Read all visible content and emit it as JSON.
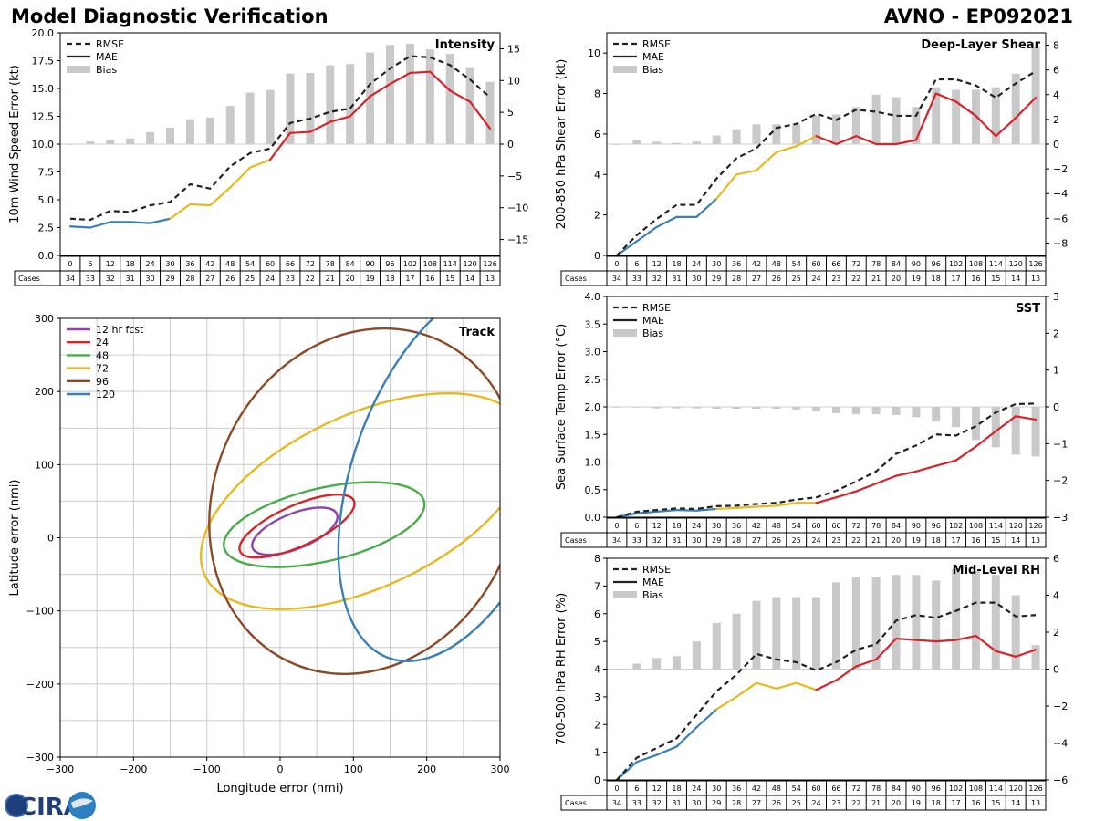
{
  "header": {
    "title_left": "Model Diagnostic Verification",
    "title_right": "AVNO - EP092021"
  },
  "logo": {
    "text": "CIRA",
    "colors": {
      "ring": "#3b6fb3",
      "globe": "#2c7fc1",
      "accent": "#e0e6ee"
    }
  },
  "colors": {
    "rmse": "#222222",
    "mae_early": "#3a7fb8",
    "mae_mid": "#e8b820",
    "mae_late": "#d9232a",
    "bias": "#c9c9c9",
    "grid": "#cccccc"
  },
  "lead_times": [
    "0",
    "6",
    "12",
    "18",
    "24",
    "30",
    "36",
    "42",
    "48",
    "54",
    "60",
    "66",
    "72",
    "78",
    "84",
    "90",
    "96",
    "102",
    "108",
    "114",
    "120",
    "126"
  ],
  "cases": [
    "34",
    "33",
    "32",
    "31",
    "30",
    "29",
    "28",
    "27",
    "26",
    "25",
    "24",
    "23",
    "22",
    "21",
    "20",
    "19",
    "18",
    "17",
    "16",
    "15",
    "14",
    "13"
  ],
  "cases_label": "Cases",
  "legend_labels": {
    "rmse": "RMSE",
    "mae": "MAE",
    "bias": "Bias"
  },
  "chart_data": [
    {
      "id": "intensity",
      "type": "line",
      "title": "Intensity",
      "ylabel": "10m Wind Speed Error (kt)",
      "ylim": [
        0,
        20
      ],
      "yticks": [
        0,
        2.5,
        5,
        7.5,
        10,
        12.5,
        15,
        17.5,
        20
      ],
      "ytick_labels": [
        "0.0",
        "2.5",
        "5.0",
        "7.5",
        "10.0",
        "12.5",
        "15.0",
        "17.5",
        "20.0"
      ],
      "y2lim": [
        -17.5,
        17.5
      ],
      "y2ticks": [
        -15,
        -10,
        -5,
        0,
        5,
        10,
        15
      ],
      "y2tick_labels": [
        "−15",
        "−10",
        "−5",
        "0",
        "5",
        "10",
        "15"
      ],
      "rmse": [
        3.3,
        3.2,
        4.0,
        3.9,
        4.5,
        4.8,
        6.4,
        6.0,
        8.0,
        9.2,
        9.6,
        11.9,
        12.3,
        12.9,
        13.2,
        15.4,
        16.8,
        17.9,
        17.8,
        17.1,
        15.8,
        14.2
      ],
      "mae": [
        2.6,
        2.5,
        3.0,
        3.0,
        2.9,
        3.3,
        4.6,
        4.5,
        6.1,
        7.9,
        8.6,
        11.0,
        11.1,
        12.0,
        12.5,
        14.3,
        15.4,
        16.4,
        16.5,
        14.8,
        13.8,
        11.4
      ],
      "bias": [
        0.0,
        0.4,
        0.6,
        0.9,
        1.9,
        2.6,
        3.9,
        4.2,
        6.0,
        8.1,
        8.5,
        11.1,
        11.2,
        12.4,
        12.6,
        14.4,
        15.6,
        15.8,
        14.9,
        14.2,
        12.1,
        9.8
      ]
    },
    {
      "id": "shear",
      "type": "line",
      "title": "Deep-Layer Shear",
      "ylabel": "200-850 hPa Shear Error (kt)",
      "ylim": [
        0,
        11
      ],
      "yticks": [
        0,
        2,
        4,
        6,
        8,
        10
      ],
      "ytick_labels": [
        "0",
        "2",
        "4",
        "6",
        "8",
        "10"
      ],
      "y2lim": [
        -9,
        9
      ],
      "y2ticks": [
        -8,
        -6,
        -4,
        -2,
        0,
        2,
        4,
        6,
        8
      ],
      "y2tick_labels": [
        "−8",
        "−6",
        "−4",
        "−2",
        "0",
        "2",
        "4",
        "6",
        "8"
      ],
      "rmse": [
        0.0,
        1.0,
        1.8,
        2.5,
        2.5,
        3.8,
        4.8,
        5.3,
        6.3,
        6.5,
        7.0,
        6.7,
        7.2,
        7.1,
        6.9,
        6.9,
        8.7,
        8.7,
        8.4,
        7.8,
        8.5,
        9.1
      ],
      "mae": [
        0.0,
        0.7,
        1.4,
        1.9,
        1.9,
        2.8,
        4.0,
        4.2,
        5.1,
        5.4,
        5.9,
        5.5,
        5.9,
        5.5,
        5.5,
        5.7,
        8.0,
        7.6,
        6.9,
        5.9,
        6.8,
        7.8
      ],
      "bias": [
        0.0,
        0.3,
        0.2,
        0.1,
        0.2,
        0.7,
        1.2,
        1.6,
        1.6,
        1.6,
        2.3,
        2.4,
        3.0,
        4.0,
        3.8,
        3.0,
        4.6,
        4.4,
        4.4,
        4.6,
        5.7,
        7.8
      ]
    },
    {
      "id": "sst",
      "type": "line",
      "title": "SST",
      "ylabel": "Sea Surface Temp Error (°C)",
      "ylim": [
        0,
        4
      ],
      "yticks": [
        0,
        0.5,
        1,
        1.5,
        2,
        2.5,
        3,
        3.5,
        4
      ],
      "ytick_labels": [
        "0.0",
        "0.5",
        "1.0",
        "1.5",
        "2.0",
        "2.5",
        "3.0",
        "3.5",
        "4.0"
      ],
      "y2lim": [
        -3,
        3
      ],
      "y2ticks": [
        -3,
        -2,
        -1,
        0,
        1,
        2,
        3
      ],
      "y2tick_labels": [
        "−3",
        "−2",
        "−1",
        "0",
        "1",
        "2",
        "3"
      ],
      "rmse": [
        0.0,
        0.1,
        0.13,
        0.16,
        0.15,
        0.2,
        0.21,
        0.24,
        0.26,
        0.32,
        0.36,
        0.48,
        0.65,
        0.83,
        1.15,
        1.3,
        1.5,
        1.48,
        1.65,
        1.9,
        2.05,
        2.06
      ],
      "mae": [
        0.0,
        0.07,
        0.1,
        0.13,
        0.12,
        0.15,
        0.17,
        0.19,
        0.21,
        0.26,
        0.26,
        0.36,
        0.47,
        0.61,
        0.75,
        0.83,
        0.93,
        1.03,
        1.28,
        1.56,
        1.83,
        1.77
      ],
      "bias": [
        0.0,
        -0.02,
        -0.04,
        -0.04,
        -0.04,
        -0.05,
        -0.05,
        -0.05,
        -0.05,
        -0.07,
        -0.12,
        -0.17,
        -0.2,
        -0.2,
        -0.22,
        -0.28,
        -0.4,
        -0.55,
        -0.9,
        -1.1,
        -1.3,
        -1.35
      ]
    },
    {
      "id": "rh",
      "type": "line",
      "title": "Mid-Level RH",
      "ylabel": "700-500 hPa RH Error (%)",
      "ylim": [
        0,
        8
      ],
      "yticks": [
        0,
        1,
        2,
        3,
        4,
        5,
        6,
        7,
        8
      ],
      "ytick_labels": [
        "0",
        "1",
        "2",
        "3",
        "4",
        "5",
        "6",
        "7",
        "8"
      ],
      "y2lim": [
        -6,
        6
      ],
      "y2ticks": [
        -6,
        -4,
        -2,
        0,
        2,
        4,
        6
      ],
      "y2tick_labels": [
        "−6",
        "−4",
        "−2",
        "0",
        "2",
        "4",
        "6"
      ],
      "rmse": [
        0.0,
        0.8,
        1.15,
        1.5,
        2.35,
        3.2,
        3.8,
        4.55,
        4.35,
        4.25,
        3.95,
        4.25,
        4.7,
        4.9,
        5.75,
        5.95,
        5.85,
        6.1,
        6.4,
        6.4,
        5.9,
        5.95
      ],
      "mae": [
        0.0,
        0.65,
        0.9,
        1.2,
        1.9,
        2.55,
        3.0,
        3.5,
        3.3,
        3.5,
        3.25,
        3.6,
        4.1,
        4.35,
        5.1,
        5.05,
        5.0,
        5.05,
        5.2,
        4.65,
        4.45,
        4.7
      ],
      "bias": [
        0.0,
        0.3,
        0.6,
        0.7,
        1.5,
        2.5,
        3.0,
        3.7,
        3.9,
        3.9,
        3.9,
        4.7,
        5.0,
        5.0,
        5.1,
        5.1,
        4.8,
        5.4,
        5.3,
        5.1,
        4.0,
        1.3
      ]
    },
    {
      "id": "track",
      "type": "scatter",
      "title": "Track",
      "xlabel": "Longitude error (nmi)",
      "ylabel": "Latitude error (nmi)",
      "xlim": [
        -300,
        300
      ],
      "ylim": [
        -300,
        300
      ],
      "xticks": [
        -300,
        -200,
        -100,
        0,
        100,
        200,
        300
      ],
      "xtick_labels": [
        "−300",
        "−200",
        "−100",
        "0",
        "100",
        "200",
        "300"
      ],
      "yticks": [
        -300,
        -200,
        -100,
        0,
        100,
        200,
        300
      ],
      "ytick_labels": [
        "−300",
        "−200",
        "−100",
        "0",
        "100",
        "200",
        "300"
      ],
      "ellipses": [
        {
          "label": "12 hr fcst",
          "color": "#8e44ad",
          "cx": 20,
          "cy": 9,
          "rx": 62,
          "ry": 24,
          "angle": 22
        },
        {
          "label": "24",
          "color": "#d9232a",
          "cx": 23,
          "cy": 16,
          "rx": 85,
          "ry": 28,
          "angle": 24
        },
        {
          "label": "48",
          "color": "#4aab4a",
          "cx": 60,
          "cy": 18,
          "rx": 140,
          "ry": 50,
          "angle": 13
        },
        {
          "label": "72",
          "color": "#e8b820",
          "cx": 115,
          "cy": 50,
          "rx": 240,
          "ry": 118,
          "angle": 25
        },
        {
          "label": "96",
          "color": "#8a4a28",
          "cx": 115,
          "cy": 50,
          "rx": 242,
          "ry": 205,
          "angle": 65
        },
        {
          "label": "120",
          "color": "#3a7fb8",
          "cx": 240,
          "cy": 90,
          "rx": 270,
          "ry": 140,
          "angle": 70
        }
      ]
    }
  ]
}
